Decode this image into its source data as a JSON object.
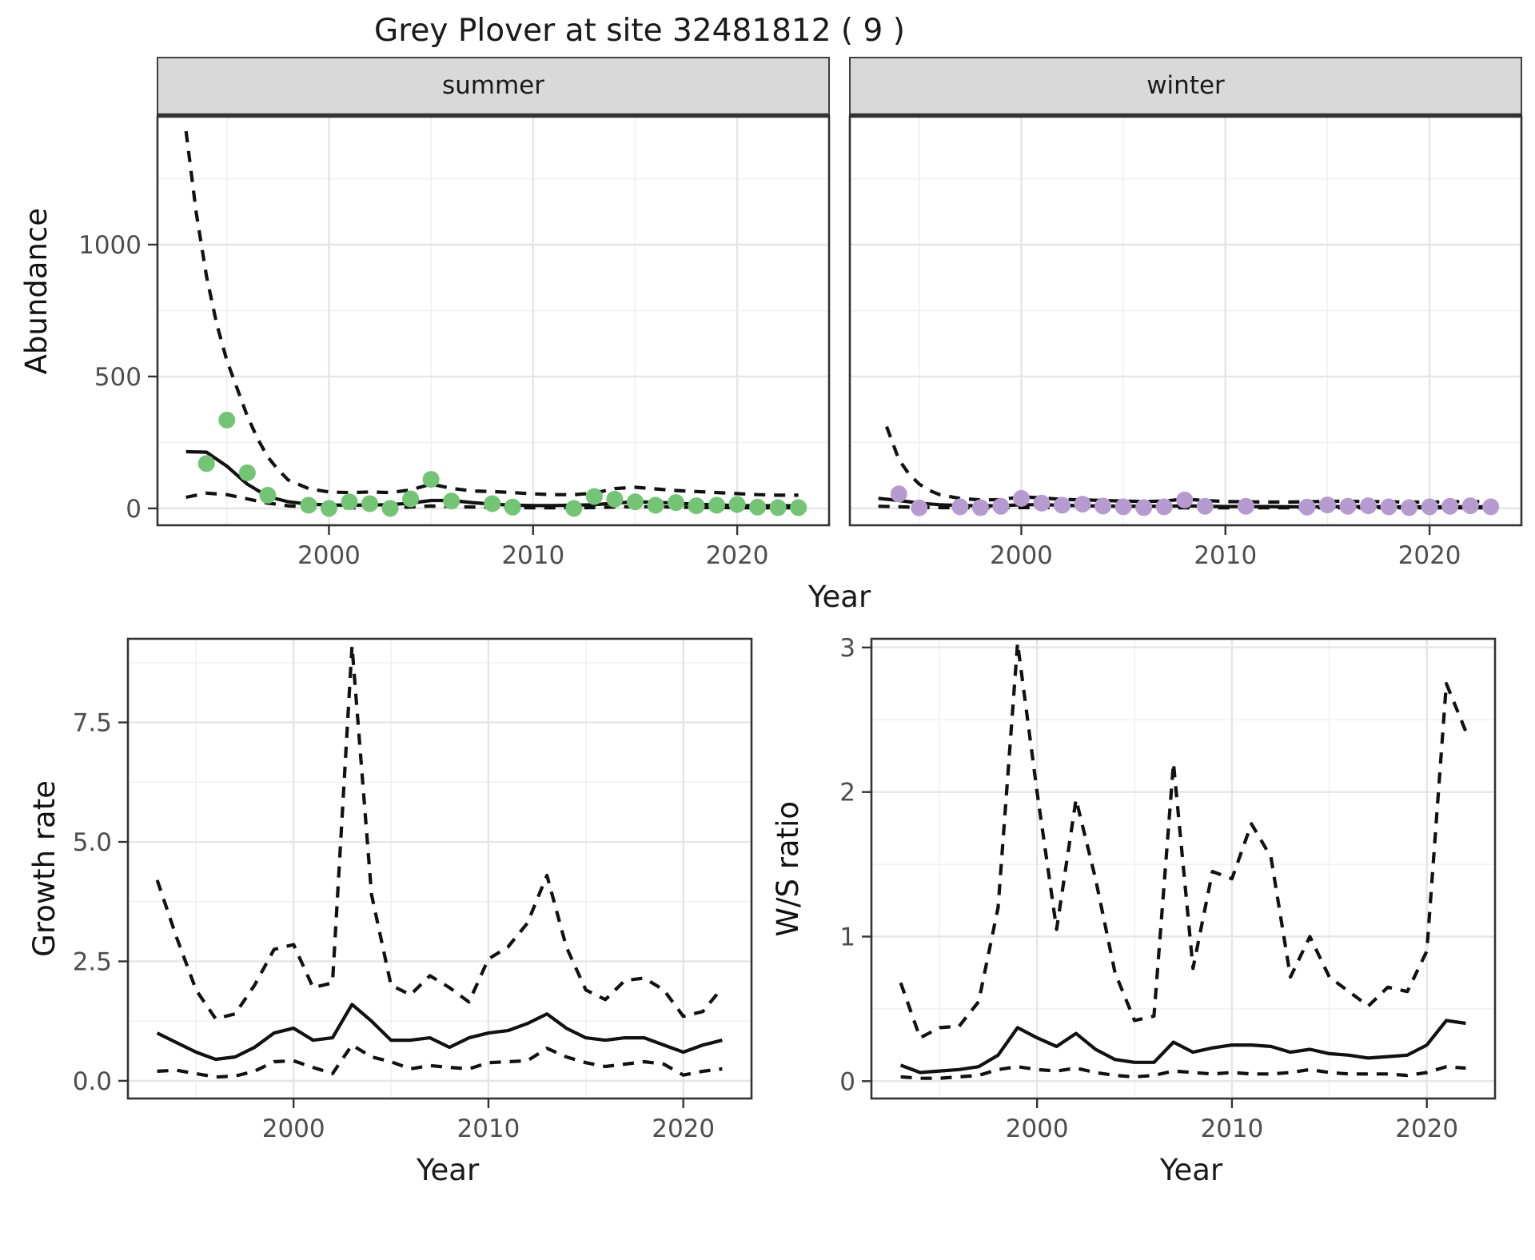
{
  "title": "Grey Plover at site 32481812 ( 9 )",
  "colors": {
    "summer_point": "#74c476",
    "winter_point": "#b69bd0",
    "line": "#111111",
    "grid_major": "#e5e5e5",
    "grid_minor": "#f0f0f0",
    "panel_border": "#333333",
    "strip_bg": "#d9d9d9",
    "strip_border": "#404040",
    "tick_label": "#4d4d4d"
  },
  "chart_data": [
    {
      "id": "abundance_summer",
      "type": "line",
      "facet_label": "summer",
      "xlabel": "Year",
      "ylabel": "Abundance",
      "xlim": [
        1991.6,
        2024.5
      ],
      "ylim": [
        -64,
        1485
      ],
      "xticks": [
        2000,
        2010,
        2020
      ],
      "xtick_labels": [
        "2000",
        "2010",
        "2020"
      ],
      "yticks": [
        0,
        500,
        1000
      ],
      "ytick_labels": [
        "0",
        "500",
        "1000"
      ],
      "x_minor": [
        1995,
        2005,
        2015
      ],
      "y_minor": [
        250,
        750,
        1250
      ],
      "series": [
        {
          "name": "upper_ci",
          "style": "dashed",
          "x": [
            1993,
            1993.5,
            1994,
            1994.5,
            1995,
            1995.5,
            1996,
            1996.5,
            1997,
            1997.5,
            1998,
            1999,
            2000,
            2001,
            2002,
            2003,
            2004,
            2005,
            2006,
            2007,
            2008,
            2009,
            2010,
            2011,
            2012,
            2013,
            2014,
            2015,
            2016,
            2017,
            2018,
            2019,
            2020,
            2021,
            2022,
            2023
          ],
          "y": [
            1430,
            1120,
            880,
            700,
            560,
            455,
            350,
            265,
            195,
            148,
            108,
            75,
            62,
            60,
            62,
            60,
            70,
            92,
            76,
            66,
            64,
            60,
            55,
            52,
            52,
            58,
            75,
            80,
            74,
            68,
            64,
            60,
            56,
            52,
            50,
            50
          ]
        },
        {
          "name": "fit",
          "style": "solid",
          "x": [
            1993,
            1994,
            1995,
            1996,
            1997,
            1998,
            1999,
            2000,
            2001,
            2002,
            2003,
            2004,
            2005,
            2006,
            2007,
            2008,
            2009,
            2010,
            2011,
            2012,
            2013,
            2014,
            2015,
            2016,
            2017,
            2018,
            2019,
            2020,
            2021,
            2022,
            2023
          ],
          "y": [
            215,
            213,
            160,
            92,
            45,
            25,
            16,
            13,
            12,
            13,
            14,
            20,
            30,
            30,
            22,
            16,
            12,
            11,
            11,
            12,
            14,
            20,
            25,
            23,
            20,
            16,
            13,
            11,
            10,
            10,
            10
          ]
        },
        {
          "name": "lower_ci",
          "style": "dashed",
          "x": [
            1993,
            1994,
            1995,
            1996,
            1997,
            1998,
            1999,
            2000,
            2001,
            2002,
            2003,
            2004,
            2005,
            2006,
            2007,
            2008,
            2009,
            2010,
            2011,
            2012,
            2013,
            2014,
            2015,
            2016,
            2017,
            2018,
            2019,
            2020,
            2021,
            2022,
            2023
          ],
          "y": [
            42,
            58,
            52,
            36,
            20,
            10,
            5,
            3,
            2,
            3,
            3,
            5,
            9,
            7,
            5,
            4,
            3,
            2,
            2,
            2,
            3,
            5,
            7,
            6,
            5,
            4,
            3,
            3,
            2,
            2,
            2
          ]
        }
      ],
      "points": {
        "name": "observed_counts",
        "color": "#74c476",
        "x": [
          1994,
          1995,
          1996,
          1997,
          1999,
          2000,
          2001,
          2002,
          2003,
          2004,
          2005,
          2006,
          2008,
          2009,
          2012,
          2013,
          2014,
          2015,
          2016,
          2017,
          2018,
          2019,
          2020,
          2021,
          2022,
          2023
        ],
        "y": [
          170,
          335,
          135,
          50,
          12,
          0,
          25,
          18,
          0,
          36,
          110,
          28,
          18,
          5,
          0,
          45,
          35,
          25,
          12,
          22,
          10,
          12,
          15,
          5,
          3,
          3
        ]
      }
    },
    {
      "id": "abundance_winter",
      "type": "line",
      "facet_label": "winter",
      "xlabel": "Year",
      "ylabel": "Abundance",
      "xlim": [
        1991.6,
        2024.5
      ],
      "ylim": [
        -64,
        1485
      ],
      "xticks": [
        2000,
        2010,
        2020
      ],
      "xtick_labels": [
        "2000",
        "2010",
        "2020"
      ],
      "yticks": [
        0,
        500,
        1000
      ],
      "ytick_labels": [
        "0",
        "500",
        "1000"
      ],
      "x_minor": [
        1995,
        2005,
        2015
      ],
      "y_minor": [
        250,
        750,
        1250
      ],
      "series": [
        {
          "name": "upper_ci",
          "style": "dashed",
          "x": [
            1993.4,
            1994,
            1994.5,
            1995,
            1995.5,
            1996,
            1997,
            1998,
            1999,
            2000,
            2001,
            2002,
            2003,
            2004,
            2005,
            2006,
            2007,
            2008,
            2009,
            2010,
            2011,
            2012,
            2013,
            2014,
            2015,
            2016,
            2017,
            2018,
            2019,
            2020,
            2021,
            2022,
            2023
          ],
          "y": [
            310,
            185,
            130,
            92,
            68,
            52,
            38,
            32,
            33,
            44,
            40,
            34,
            32,
            30,
            28,
            26,
            28,
            35,
            30,
            26,
            25,
            24,
            24,
            25,
            27,
            27,
            26,
            25,
            24,
            24,
            25,
            26,
            25
          ]
        },
        {
          "name": "fit",
          "style": "solid",
          "x": [
            1993,
            1994,
            1995,
            1996,
            1997,
            1998,
            1999,
            2000,
            2001,
            2002,
            2003,
            2004,
            2005,
            2006,
            2007,
            2008,
            2009,
            2010,
            2011,
            2012,
            2013,
            2014,
            2015,
            2016,
            2017,
            2018,
            2019,
            2020,
            2021,
            2022,
            2023
          ],
          "y": [
            38,
            30,
            20,
            14,
            11,
            10,
            10,
            14,
            14,
            12,
            10,
            9,
            8,
            8,
            8,
            10,
            8,
            7,
            7,
            7,
            6,
            6,
            7,
            7,
            7,
            6,
            6,
            6,
            6,
            6,
            6
          ]
        },
        {
          "name": "lower_ci",
          "style": "dashed",
          "x": [
            1993,
            1994,
            1995,
            1996,
            1997,
            1998,
            1999,
            2000,
            2001,
            2002,
            2003,
            2004,
            2005,
            2006,
            2007,
            2008,
            2009,
            2010,
            2011,
            2012,
            2013,
            2014,
            2015,
            2016,
            2017,
            2018,
            2019,
            2020,
            2021,
            2022,
            2023
          ],
          "y": [
            8,
            6,
            4,
            3,
            2,
            2,
            2,
            3,
            3,
            3,
            2,
            2,
            2,
            2,
            2,
            2,
            2,
            2,
            2,
            2,
            2,
            2,
            2,
            2,
            2,
            2,
            2,
            2,
            2,
            2,
            2
          ]
        }
      ],
      "points": {
        "name": "observed_counts",
        "color": "#b69bd0",
        "x": [
          1994,
          1995,
          1997,
          1998,
          1999,
          2000,
          2001,
          2002,
          2003,
          2004,
          2005,
          2006,
          2007,
          2008,
          2009,
          2011,
          2014,
          2015,
          2016,
          2017,
          2018,
          2019,
          2020,
          2021,
          2022,
          2023
        ],
        "y": [
          55,
          2,
          6,
          3,
          8,
          38,
          20,
          12,
          16,
          9,
          6,
          3,
          6,
          32,
          8,
          8,
          5,
          13,
          8,
          10,
          6,
          3,
          6,
          8,
          10,
          6
        ]
      }
    },
    {
      "id": "growth_rate",
      "type": "line",
      "xlabel": "Year",
      "ylabel": "Growth rate",
      "xlim": [
        1991.5,
        2023.5
      ],
      "ylim": [
        -0.37,
        9.25
      ],
      "xticks": [
        2000,
        2010,
        2020
      ],
      "xtick_labels": [
        "2000",
        "2010",
        "2020"
      ],
      "yticks": [
        0,
        2.5,
        5,
        7.5
      ],
      "ytick_labels": [
        "0.0",
        "2.5",
        "5.0",
        "7.5"
      ],
      "x_minor": [
        1995,
        2005,
        2015
      ],
      "y_minor": [
        1.25,
        3.75,
        6.25,
        8.75
      ],
      "series": [
        {
          "name": "upper_ci",
          "style": "dashed",
          "x": [
            1993,
            1994,
            1995,
            1996,
            1997,
            1998,
            1999,
            2000,
            2001,
            2002,
            2003,
            2004,
            2005,
            2006,
            2007,
            2008,
            2009,
            2010,
            2011,
            2012,
            2013,
            2014,
            2015,
            2016,
            2017,
            2018,
            2019,
            2020,
            2021,
            2022
          ],
          "y": [
            4.2,
            3.0,
            1.9,
            1.3,
            1.4,
            2.0,
            2.75,
            2.85,
            1.95,
            2.05,
            9.1,
            3.9,
            2.0,
            1.8,
            2.2,
            1.95,
            1.65,
            2.55,
            2.8,
            3.3,
            4.3,
            2.8,
            1.9,
            1.7,
            2.1,
            2.15,
            1.9,
            1.35,
            1.45,
            1.95
          ]
        },
        {
          "name": "fit",
          "style": "solid",
          "x": [
            1993,
            1994,
            1995,
            1996,
            1997,
            1998,
            1999,
            2000,
            2001,
            2002,
            2003,
            2004,
            2005,
            2006,
            2007,
            2008,
            2009,
            2010,
            2011,
            2012,
            2013,
            2014,
            2015,
            2016,
            2017,
            2018,
            2019,
            2020,
            2021,
            2022
          ],
          "y": [
            1.0,
            0.8,
            0.6,
            0.45,
            0.5,
            0.7,
            1.0,
            1.1,
            0.85,
            0.9,
            1.6,
            1.25,
            0.85,
            0.85,
            0.9,
            0.7,
            0.9,
            1.0,
            1.05,
            1.2,
            1.4,
            1.1,
            0.9,
            0.85,
            0.9,
            0.9,
            0.75,
            0.6,
            0.75,
            0.85
          ]
        },
        {
          "name": "lower_ci",
          "style": "dashed",
          "x": [
            1993,
            1994,
            1995,
            1996,
            1997,
            1998,
            1999,
            2000,
            2001,
            2002,
            2003,
            2004,
            2005,
            2006,
            2007,
            2008,
            2009,
            2010,
            2011,
            2012,
            2013,
            2014,
            2015,
            2016,
            2017,
            2018,
            2019,
            2020,
            2021,
            2022
          ],
          "y": [
            0.2,
            0.22,
            0.15,
            0.08,
            0.1,
            0.2,
            0.4,
            0.42,
            0.28,
            0.15,
            0.75,
            0.5,
            0.4,
            0.25,
            0.32,
            0.28,
            0.25,
            0.38,
            0.4,
            0.42,
            0.68,
            0.5,
            0.38,
            0.3,
            0.35,
            0.4,
            0.35,
            0.12,
            0.2,
            0.25
          ]
        }
      ]
    },
    {
      "id": "ws_ratio",
      "type": "line",
      "xlabel": "Year",
      "ylabel": "W/S ratio",
      "xlim": [
        1991.5,
        2023.5
      ],
      "ylim": [
        -0.12,
        3.06
      ],
      "xticks": [
        2000,
        2010,
        2020
      ],
      "xtick_labels": [
        "2000",
        "2010",
        "2020"
      ],
      "yticks": [
        0,
        1,
        2,
        3
      ],
      "ytick_labels": [
        "0",
        "1",
        "2",
        "3"
      ],
      "x_minor": [
        1995,
        2005,
        2015
      ],
      "y_minor": [
        0.5,
        1.5,
        2.5
      ],
      "series": [
        {
          "name": "upper_ci",
          "style": "dashed",
          "x": [
            1993,
            1994,
            1995,
            1996,
            1997,
            1998,
            1999,
            2000,
            2001,
            2002,
            2003,
            2004,
            2005,
            2006,
            2007,
            2008,
            2009,
            2010,
            2011,
            2012,
            2013,
            2014,
            2015,
            2016,
            2017,
            2018,
            2019,
            2020,
            2021,
            2022
          ],
          "y": [
            0.68,
            0.3,
            0.37,
            0.38,
            0.55,
            1.2,
            3.03,
            2.0,
            1.05,
            1.95,
            1.4,
            0.75,
            0.42,
            0.45,
            2.2,
            0.78,
            1.45,
            1.4,
            1.78,
            1.55,
            0.72,
            1.0,
            0.72,
            0.62,
            0.52,
            0.65,
            0.62,
            0.9,
            2.75,
            2.42
          ]
        },
        {
          "name": "fit",
          "style": "solid",
          "x": [
            1993,
            1994,
            1995,
            1996,
            1997,
            1998,
            1999,
            2000,
            2001,
            2002,
            2003,
            2004,
            2005,
            2006,
            2007,
            2008,
            2009,
            2010,
            2011,
            2012,
            2013,
            2014,
            2015,
            2016,
            2017,
            2018,
            2019,
            2020,
            2021,
            2022
          ],
          "y": [
            0.11,
            0.06,
            0.07,
            0.08,
            0.1,
            0.18,
            0.37,
            0.3,
            0.24,
            0.33,
            0.22,
            0.15,
            0.13,
            0.13,
            0.27,
            0.2,
            0.23,
            0.25,
            0.25,
            0.24,
            0.2,
            0.22,
            0.19,
            0.18,
            0.16,
            0.17,
            0.18,
            0.25,
            0.42,
            0.4
          ]
        },
        {
          "name": "lower_ci",
          "style": "dashed",
          "x": [
            1993,
            1994,
            1995,
            1996,
            1997,
            1998,
            1999,
            2000,
            2001,
            2002,
            2003,
            2004,
            2005,
            2006,
            2007,
            2008,
            2009,
            2010,
            2011,
            2012,
            2013,
            2014,
            2015,
            2016,
            2017,
            2018,
            2019,
            2020,
            2021,
            2022
          ],
          "y": [
            0.03,
            0.02,
            0.02,
            0.03,
            0.04,
            0.08,
            0.1,
            0.08,
            0.07,
            0.09,
            0.06,
            0.04,
            0.03,
            0.04,
            0.07,
            0.06,
            0.05,
            0.06,
            0.05,
            0.05,
            0.06,
            0.08,
            0.06,
            0.05,
            0.05,
            0.05,
            0.04,
            0.06,
            0.1,
            0.09
          ]
        }
      ]
    }
  ]
}
